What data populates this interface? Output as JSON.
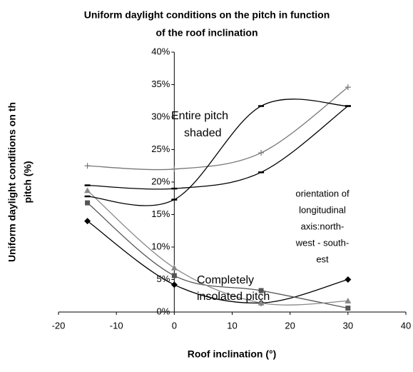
{
  "chart_data": {
    "type": "line",
    "title": [
      "Uniform daylight conditions on the pitch in function",
      "of the roof inclination"
    ],
    "x_label": "Roof inclination (°)",
    "y_label": [
      "Uniform daylight conditions on th",
      "pitch (%)"
    ],
    "x": [
      -15,
      0,
      15,
      30
    ],
    "xlim": [
      -20,
      40
    ],
    "xticks": [
      -20,
      -10,
      0,
      10,
      20,
      30,
      40
    ],
    "ylim": [
      0,
      40
    ],
    "yticks": [
      {
        "value": 0,
        "label": "0%"
      },
      {
        "value": 5,
        "label": "5%"
      },
      {
        "value": 10,
        "label": "10%"
      },
      {
        "value": 15,
        "label": "15%"
      },
      {
        "value": 20,
        "label": "20%"
      },
      {
        "value": 25,
        "label": "25%"
      },
      {
        "value": 30,
        "label": "30%"
      },
      {
        "value": 35,
        "label": "35%"
      },
      {
        "value": 40,
        "label": "40%"
      }
    ],
    "smooth": true,
    "series": [
      {
        "color": "#000000",
        "marker": "diamond",
        "values": [
          14.0,
          4.2,
          1.4,
          5.0
        ]
      },
      {
        "color": "#555555",
        "marker": "square",
        "values": [
          16.8,
          5.6,
          3.3,
          0.6
        ]
      },
      {
        "color": "#888888",
        "marker": "triangle",
        "values": [
          18.7,
          6.8,
          1.4,
          1.7
        ]
      },
      {
        "color": "#777777",
        "marker": "plus",
        "values": [
          22.5,
          22.0,
          24.5,
          34.6
        ]
      },
      {
        "color": "#000000",
        "marker": "dash",
        "values": [
          19.5,
          19.0,
          21.5,
          31.7
        ]
      },
      {
        "color": "#000000",
        "marker": "dash",
        "values": [
          17.8,
          17.3,
          31.7,
          31.7
        ]
      }
    ],
    "annotations": [
      [
        "Entire pitch",
        "shaded"
      ],
      [
        "orientation of",
        "longitudinal",
        "axis:north-",
        "west - south-",
        "est"
      ],
      [
        "Completely",
        "insolated pitch"
      ]
    ]
  }
}
